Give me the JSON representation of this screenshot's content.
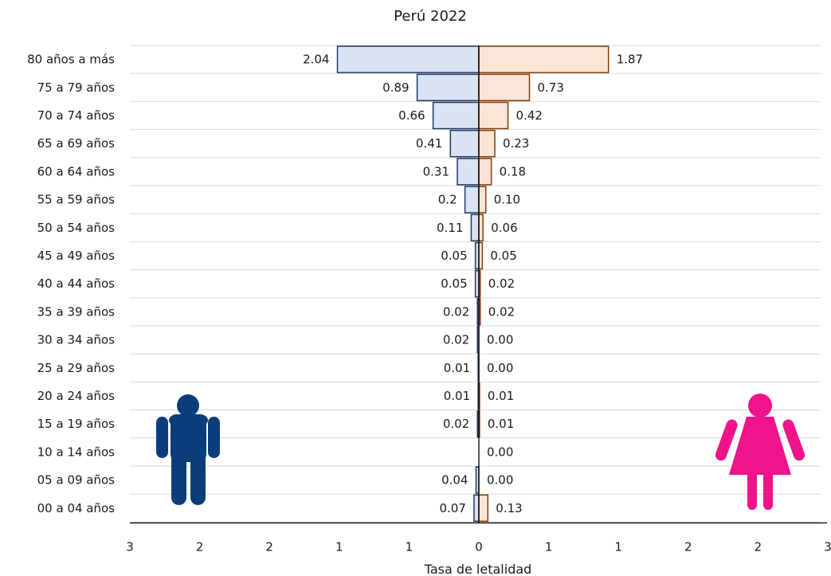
{
  "chart_data": {
    "type": "bar",
    "orientation": "horizontal",
    "subtype": "population-pyramid",
    "title": "Perú 2022",
    "xlabel": "Tasa de letalidad",
    "ylabel": "",
    "xlim": [
      -3,
      3
    ],
    "x_tick_labels": [
      "3",
      "2",
      "2",
      "1",
      "1",
      "0",
      "1",
      "1",
      "2",
      "2",
      "3"
    ],
    "grid": "horizontal",
    "categories": [
      "80 años a más",
      "75 a 79 años",
      "70 a 74 años",
      "65 a 69 años",
      "60 a 64 años",
      "55 a 59 años",
      "50 a 54 años",
      "45 a 49 años",
      "40 a 44 años",
      "35 a 39 años",
      "30 a 34 años",
      "25 a 29 años",
      "20 a 24 años",
      "15 a 19 años",
      "10 a 14 años",
      "05 a 09 años",
      "00 a 04 años"
    ],
    "series": [
      {
        "side": "left",
        "color": "#dae3f3",
        "edge_color": "#1f3864",
        "values": [
          2.04,
          0.89,
          0.66,
          0.41,
          0.31,
          0.2,
          0.11,
          0.05,
          0.05,
          0.02,
          0.02,
          0.01,
          0.01,
          0.02,
          0.0,
          0.04,
          0.07
        ],
        "labels": [
          "2.04",
          "0.89",
          "0.66",
          "0.41",
          "0.31",
          "0.2",
          "0.11",
          "0.05",
          "0.05",
          "0.02",
          "0.02",
          "0.01",
          "0.01",
          "0.02",
          "",
          "0.04",
          "0.07"
        ]
      },
      {
        "side": "right",
        "color": "#fbe5d6",
        "edge_color": "#843c0c",
        "values": [
          1.87,
          0.73,
          0.42,
          0.23,
          0.18,
          0.1,
          0.06,
          0.05,
          0.02,
          0.02,
          0.0,
          0.0,
          0.01,
          0.01,
          0.0,
          0.0,
          0.13
        ],
        "labels": [
          "1.87",
          "0.73",
          "0.42",
          "0.23",
          "0.18",
          "0.10",
          "0.06",
          "0.05",
          "0.02",
          "0.02",
          "0.00",
          "0.00",
          "0.01",
          "0.01",
          "0.00",
          "0.00",
          "0.13"
        ]
      }
    ],
    "icons": {
      "male": {
        "name": "male-person-icon",
        "color": "#0b3d7a"
      },
      "female": {
        "name": "female-person-icon",
        "color": "#f0138a"
      }
    }
  }
}
